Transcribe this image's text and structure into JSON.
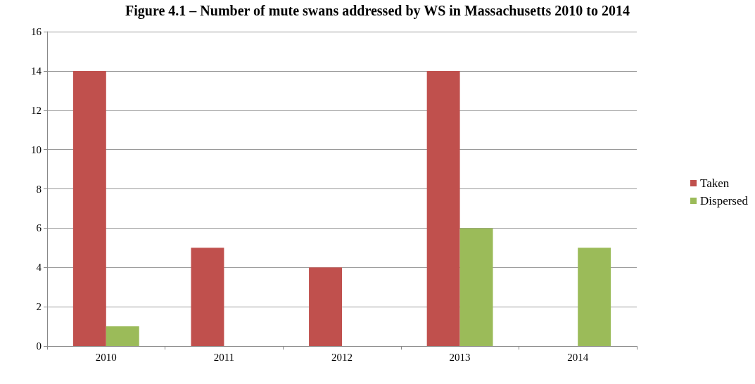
{
  "chart_data": {
    "type": "bar",
    "title": "Figure 4.1 – Number of mute swans addressed by WS in Massachusetts 2010 to 2014",
    "categories": [
      "2010",
      "2011",
      "2012",
      "2013",
      "2014"
    ],
    "series": [
      {
        "name": "Taken",
        "color": "#c0504d",
        "values": [
          14,
          5,
          4,
          14,
          0
        ]
      },
      {
        "name": "Dispersed",
        "color": "#9bbb59",
        "values": [
          1,
          0,
          0,
          6,
          5
        ]
      }
    ],
    "ylim": [
      0,
      16
    ],
    "yticks": [
      0,
      2,
      4,
      6,
      8,
      10,
      12,
      14,
      16
    ],
    "grid": "y",
    "legend": "right"
  }
}
